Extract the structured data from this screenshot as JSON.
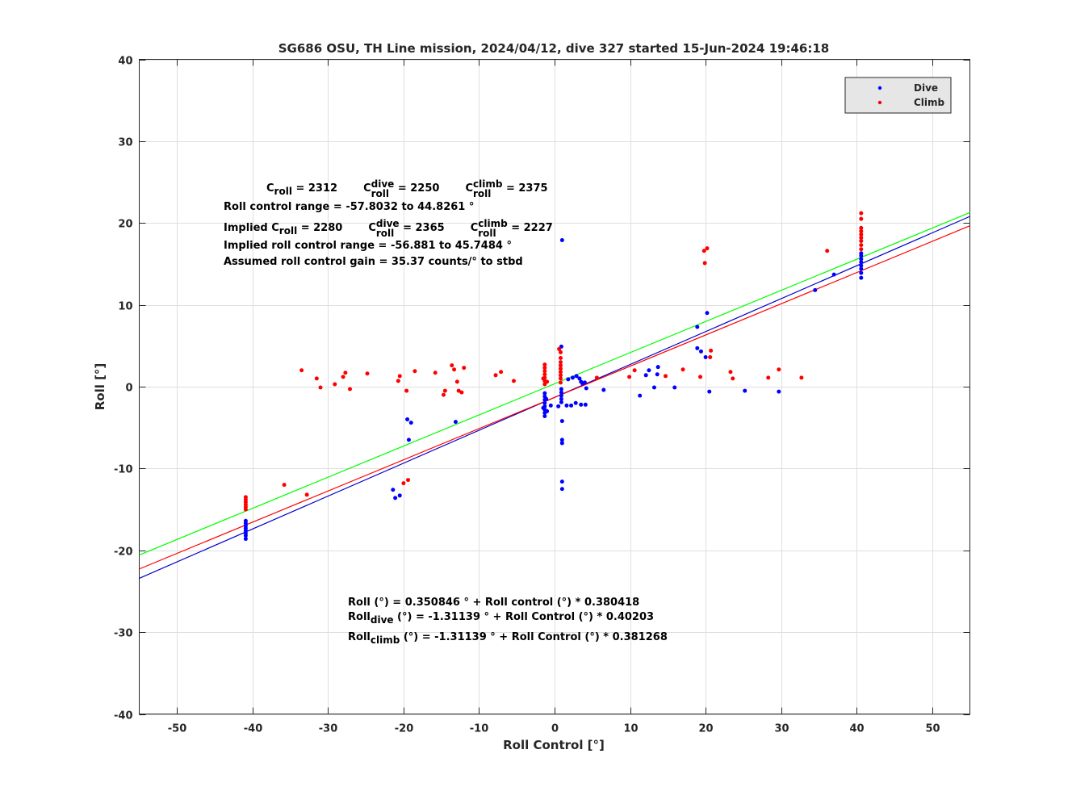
{
  "chart_data": {
    "type": "scatter",
    "title": "SG686 OSU, TH Line mission, 2024/04/12, dive 327 started 15-Jun-2024 19:46:18",
    "xlabel": "Roll Control [°]",
    "ylabel": "Roll [°]",
    "xlim": [
      -55,
      55
    ],
    "ylim": [
      -40,
      40
    ],
    "xticks": [
      -50,
      -40,
      -30,
      -20,
      -10,
      0,
      10,
      20,
      30,
      40,
      50
    ],
    "yticks": [
      -40,
      -30,
      -20,
      -10,
      0,
      10,
      20,
      30,
      40
    ],
    "grid": true,
    "legend": {
      "placement": "top-right",
      "entries": [
        "Dive",
        "Climb"
      ]
    },
    "colors": {
      "dive": "#0000ff",
      "climb": "#ff0000",
      "fit_all": "#00ff00",
      "fit_dive": "#0000cc",
      "fit_climb": "#ff0000"
    },
    "series": [
      {
        "name": "Dive",
        "points": [
          [
            -40.9,
            -18.6
          ],
          [
            -40.9,
            -18.2
          ],
          [
            -40.9,
            -17.9
          ],
          [
            -40.9,
            -17.6
          ],
          [
            -40.9,
            -17.3
          ],
          [
            -40.9,
            -17.0
          ],
          [
            -40.9,
            -16.7
          ],
          [
            -40.9,
            -16.4
          ],
          [
            -19.5,
            -4.0
          ],
          [
            -19.0,
            -4.4
          ],
          [
            -19.3,
            -6.5
          ],
          [
            -13.1,
            -4.3
          ],
          [
            -21.4,
            -12.6
          ],
          [
            -21.1,
            -13.6
          ],
          [
            -20.5,
            -13.3
          ],
          [
            -1.3,
            -0.8
          ],
          [
            -1.3,
            -1.2
          ],
          [
            -1.3,
            -1.6
          ],
          [
            -1.3,
            -2.0
          ],
          [
            -1.3,
            -2.4
          ],
          [
            -1.3,
            -2.8
          ],
          [
            -1.3,
            -3.2
          ],
          [
            -1.3,
            -3.6
          ],
          [
            -1.0,
            -3.0
          ],
          [
            -1.5,
            -2.6
          ],
          [
            -1.1,
            -1.5
          ],
          [
            0.9,
            -0.3
          ],
          [
            0.9,
            -0.7
          ],
          [
            0.9,
            -1.1
          ],
          [
            0.9,
            -1.5
          ],
          [
            0.9,
            -1.9
          ],
          [
            1.0,
            -4.2
          ],
          [
            1.0,
            -6.5
          ],
          [
            1.0,
            -6.9
          ],
          [
            1.0,
            -11.6
          ],
          [
            1.0,
            -12.5
          ],
          [
            1.0,
            17.9
          ],
          [
            0.9,
            4.9
          ],
          [
            -0.5,
            -2.3
          ],
          [
            0.5,
            -2.4
          ],
          [
            1.6,
            -2.3
          ],
          [
            2.2,
            -2.3
          ],
          [
            2.8,
            -2.0
          ],
          [
            3.5,
            -2.2
          ],
          [
            4.1,
            -2.2
          ],
          [
            1.8,
            0.9
          ],
          [
            2.4,
            1.1
          ],
          [
            2.9,
            1.3
          ],
          [
            3.3,
            1.0
          ],
          [
            3.7,
            0.4
          ],
          [
            4.2,
            -0.2
          ],
          [
            4.0,
            0.5
          ],
          [
            3.5,
            0.6
          ],
          [
            6.5,
            -0.4
          ],
          [
            11.3,
            -1.1
          ],
          [
            12.1,
            1.4
          ],
          [
            12.5,
            2.0
          ],
          [
            13.2,
            -0.1
          ],
          [
            13.6,
            1.5
          ],
          [
            13.7,
            2.4
          ],
          [
            15.9,
            -0.1
          ],
          [
            18.9,
            7.3
          ],
          [
            18.9,
            4.7
          ],
          [
            19.4,
            4.3
          ],
          [
            20.0,
            3.6
          ],
          [
            20.2,
            9.0
          ],
          [
            20.5,
            -0.6
          ],
          [
            25.2,
            -0.5
          ],
          [
            29.7,
            -0.6
          ],
          [
            34.5,
            11.8
          ],
          [
            37.0,
            13.7
          ],
          [
            40.6,
            13.3
          ],
          [
            40.6,
            13.9
          ],
          [
            40.6,
            14.4
          ],
          [
            40.6,
            14.8
          ],
          [
            40.6,
            15.2
          ],
          [
            40.6,
            15.6
          ],
          [
            40.6,
            16.0
          ],
          [
            40.6,
            16.3
          ]
        ]
      },
      {
        "name": "Climb",
        "points": [
          [
            -40.9,
            -13.5
          ],
          [
            -40.9,
            -13.8
          ],
          [
            -40.9,
            -14.1
          ],
          [
            -40.9,
            -14.4
          ],
          [
            -40.9,
            -14.7
          ],
          [
            -40.9,
            -15.0
          ],
          [
            -35.8,
            -12.0
          ],
          [
            -32.8,
            -13.2
          ],
          [
            -33.5,
            2.0
          ],
          [
            -31.5,
            1.0
          ],
          [
            -31.0,
            -0.1
          ],
          [
            -29.1,
            0.3
          ],
          [
            -28.0,
            1.2
          ],
          [
            -27.7,
            1.7
          ],
          [
            -27.1,
            -0.3
          ],
          [
            -24.8,
            1.6
          ],
          [
            -20.5,
            1.3
          ],
          [
            -20.7,
            0.7
          ],
          [
            -19.6,
            -0.5
          ],
          [
            -18.5,
            1.9
          ],
          [
            -20.0,
            -11.8
          ],
          [
            -19.4,
            -11.4
          ],
          [
            -15.8,
            1.7
          ],
          [
            -14.7,
            -1.0
          ],
          [
            -14.5,
            -0.5
          ],
          [
            -13.6,
            2.6
          ],
          [
            -13.3,
            2.1
          ],
          [
            -12.9,
            0.6
          ],
          [
            -12.7,
            -0.5
          ],
          [
            -12.3,
            -0.7
          ],
          [
            -12.0,
            2.3
          ],
          [
            -7.8,
            1.4
          ],
          [
            -7.1,
            1.8
          ],
          [
            -5.4,
            0.7
          ],
          [
            -1.3,
            0.3
          ],
          [
            -1.3,
            0.7
          ],
          [
            -1.3,
            1.1
          ],
          [
            -1.3,
            1.5
          ],
          [
            -1.3,
            1.9
          ],
          [
            -1.3,
            2.3
          ],
          [
            -1.3,
            2.7
          ],
          [
            -1.0,
            0.6
          ],
          [
            -1.5,
            1.0
          ],
          [
            0.8,
            0.5
          ],
          [
            0.8,
            1.0
          ],
          [
            0.8,
            1.4
          ],
          [
            0.8,
            1.8
          ],
          [
            0.8,
            2.2
          ],
          [
            0.8,
            2.6
          ],
          [
            0.8,
            3.0
          ],
          [
            0.8,
            3.5
          ],
          [
            0.8,
            4.2
          ],
          [
            0.6,
            4.6
          ],
          [
            5.6,
            1.1
          ],
          [
            9.9,
            1.2
          ],
          [
            10.6,
            2.0
          ],
          [
            14.7,
            1.3
          ],
          [
            17.0,
            2.1
          ],
          [
            19.3,
            1.2
          ],
          [
            19.8,
            16.6
          ],
          [
            19.9,
            15.1
          ],
          [
            20.2,
            16.9
          ],
          [
            20.7,
            4.4
          ],
          [
            20.6,
            3.6
          ],
          [
            23.3,
            1.8
          ],
          [
            23.6,
            1.0
          ],
          [
            28.3,
            1.1
          ],
          [
            29.7,
            2.1
          ],
          [
            32.7,
            1.1
          ],
          [
            36.1,
            16.6
          ],
          [
            40.6,
            16.8
          ],
          [
            40.6,
            17.3
          ],
          [
            40.6,
            17.8
          ],
          [
            40.6,
            18.2
          ],
          [
            40.6,
            18.6
          ],
          [
            40.6,
            19.0
          ],
          [
            40.6,
            19.4
          ],
          [
            40.6,
            20.5
          ],
          [
            40.6,
            21.2
          ]
        ]
      }
    ],
    "fits": [
      {
        "name": "all",
        "intercept": 0.350846,
        "slope": 0.380418
      },
      {
        "name": "dive",
        "intercept": -1.31139,
        "slope": 0.40203
      },
      {
        "name": "climb",
        "intercept": -1.31139,
        "slope": 0.381268
      }
    ]
  },
  "annotations": {
    "line1": {
      "c1_pre": "C",
      "c1_sub": "roll",
      "c1_post": " = 2312",
      "c2_pre": "C",
      "c2_sup": "dive",
      "c2_sub": "roll",
      "c2_post": " = 2250",
      "c3_pre": "C",
      "c3_sup": "climb",
      "c3_sub": "roll",
      "c3_post": " = 2375"
    },
    "line2": "Roll control range = -57.8032 to 44.8261 °",
    "line3": {
      "pre": "Implied C",
      "sub": "roll",
      "post": " = 2280",
      "c2_pre": "C",
      "c2_sup": "dive",
      "c2_sub": "roll",
      "c2_post": " = 2365",
      "c3_pre": "C",
      "c3_sup": "climb",
      "c3_sub": "roll",
      "c3_post": " = 2227"
    },
    "line4": "Implied roll control range = -56.881 to 45.7484 °",
    "line5": "Assumed roll control gain = 35.37 counts/° to stbd",
    "fit1": "Roll (°) = 0.350846 ° + Roll control (°) * 0.380418",
    "fit2": {
      "pre": "Roll",
      "sub": "dive",
      "post": " (°) = -1.31139 ° + Roll Control (°) * 0.40203"
    },
    "fit3": {
      "pre": "Roll",
      "sub": "climb",
      "post": " (°) = -1.31139 ° + Roll Control (°) * 0.381268"
    }
  }
}
